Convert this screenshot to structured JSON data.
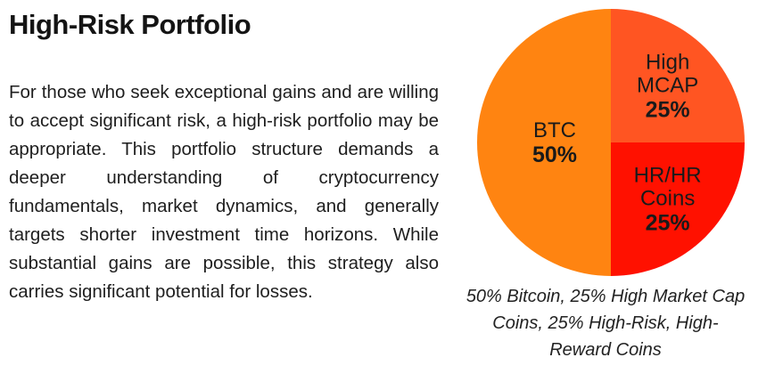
{
  "heading": {
    "title": "High-Risk Portfolio"
  },
  "description": {
    "text": "For those who seek exceptional gains and are willing to accept significant risk, a high-risk portfolio may be appropriate. This portfolio structure demands a deeper understanding of cryptocurrency fundamentals, market dynamics, and generally targets shorter investment time horizons. While substantial gains are possible, this strategy also carries significant potential for losses."
  },
  "chart_data": {
    "type": "pie",
    "title": "",
    "slices": [
      {
        "label_lines": [
          "BTC"
        ],
        "value": 50,
        "value_label": "50%",
        "color": "#FF8411"
      },
      {
        "label_lines": [
          "High",
          "MCAP"
        ],
        "value": 25,
        "value_label": "25%",
        "color": "#FF5522"
      },
      {
        "label_lines": [
          "HR/HR",
          "Coins"
        ],
        "value": 25,
        "value_label": "25%",
        "color": "#FF1100"
      }
    ],
    "legend": "none",
    "caption": "50% Bitcoin, 25% High Market Cap Coins, 25% High-Risk, High-Reward Coins"
  }
}
